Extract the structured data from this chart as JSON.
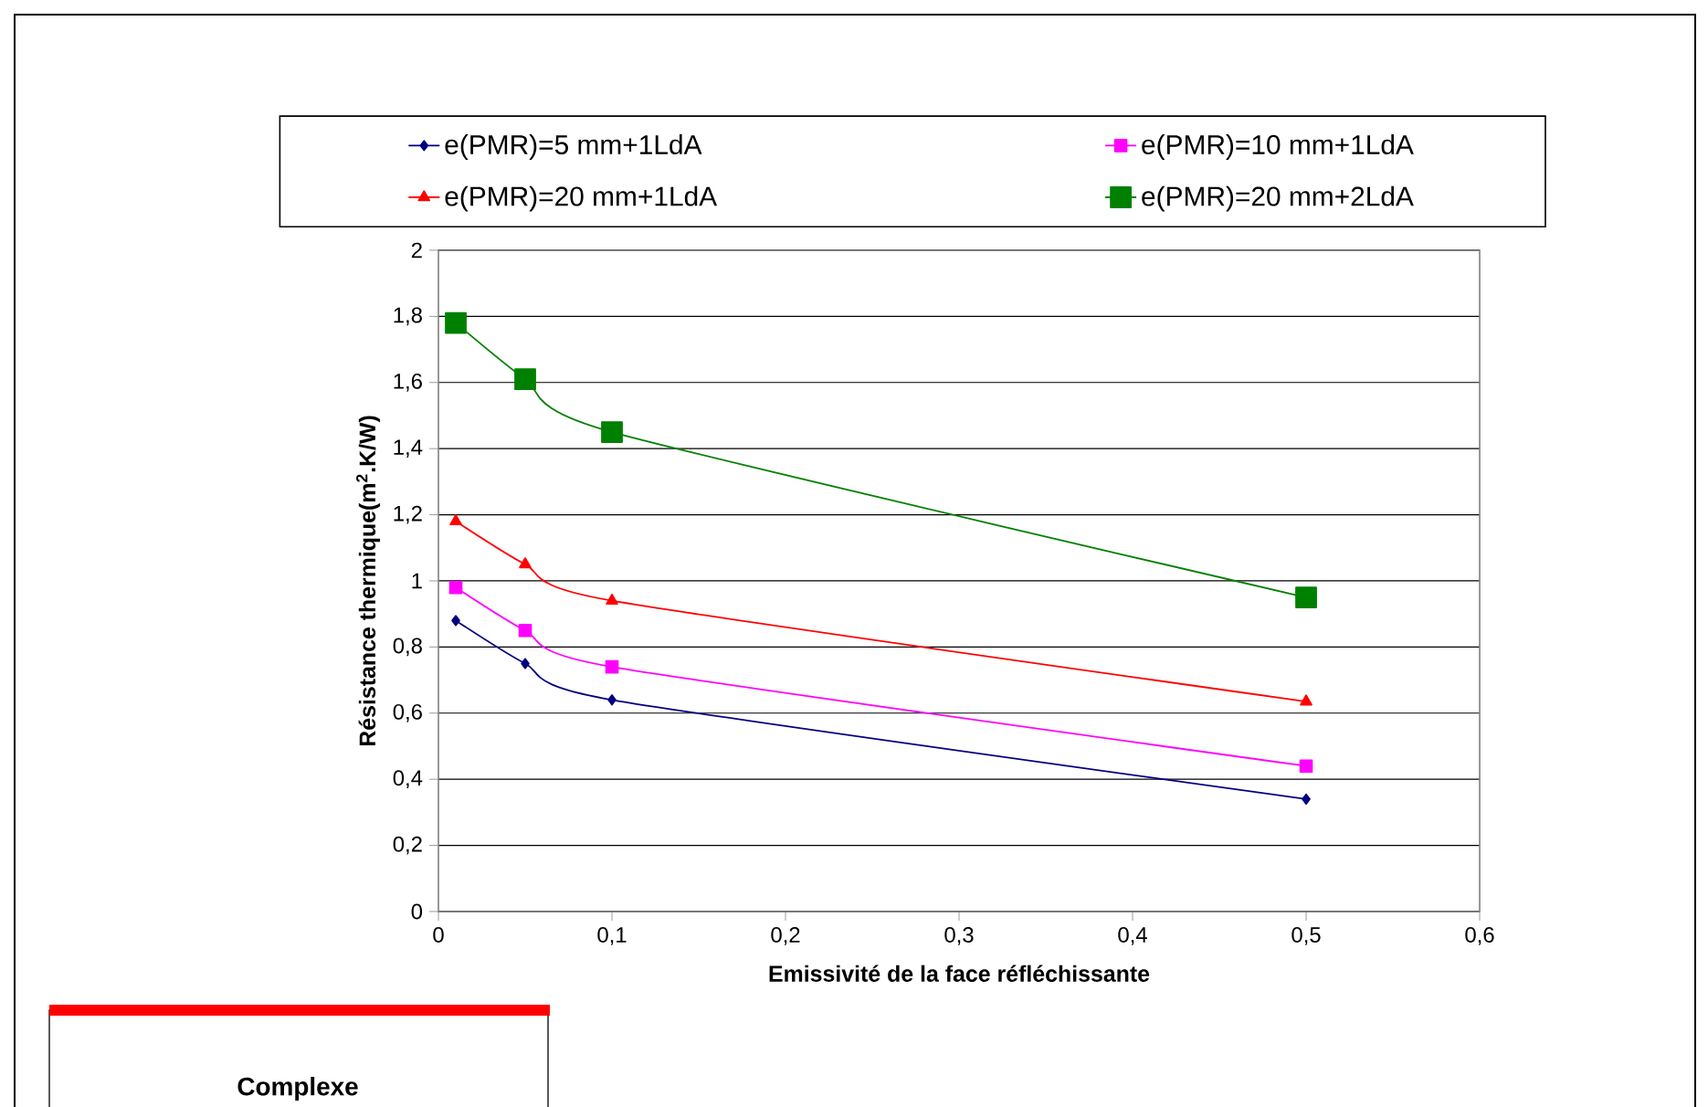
{
  "chart_data": {
    "type": "line",
    "xlabel": "Emissivité de la face réfléchissante",
    "ylabel": "Résistance thermique(m$^{2}$.K/W)",
    "x": [
      0.01,
      0.05,
      0.1,
      0.5
    ],
    "series": [
      {
        "name": "e(PMR)=5 mm+1LdA",
        "color": "#000080",
        "marker": "diamond",
        "values": [
          0.88,
          0.75,
          0.64,
          0.34
        ]
      },
      {
        "name": "e(PMR)=10 mm+1LdA",
        "color": "#ff00ff",
        "marker": "square",
        "values": [
          0.98,
          0.85,
          0.74,
          0.44
        ]
      },
      {
        "name": "e(PMR)=20 mm+1LdA",
        "color": "#ff0000",
        "marker": "triangle",
        "values": [
          1.18,
          1.05,
          0.94,
          0.635
        ]
      },
      {
        "name": "e(PMR)=20 mm+2LdA",
        "color": "#008000",
        "marker": "square",
        "values": [
          1.78,
          1.61,
          1.45,
          0.95
        ]
      }
    ],
    "xlim": [
      0,
      0.6
    ],
    "xticks": [
      0,
      {
        "value": 0.1,
        "label": "0,1"
      },
      {
        "value": 0.2,
        "label": "0,2"
      },
      {
        "value": 0.3,
        "label": "0,3"
      },
      {
        "value": 0.4,
        "label": "0,4"
      },
      {
        "value": 0.5,
        "label": "0,5"
      },
      {
        "value": 0.6,
        "label": "0,6"
      }
    ],
    "ylim": [
      0,
      2
    ],
    "yticks": [
      0,
      {
        "value": 0.2,
        "label": "0,2"
      },
      {
        "value": 0.4,
        "label": "0,4"
      },
      {
        "value": 0.6,
        "label": "0,6"
      },
      {
        "value": 0.8,
        "label": "0,8"
      },
      1,
      {
        "value": 1.2,
        "label": "1,2"
      },
      {
        "value": 1.4,
        "label": "1,4"
      },
      {
        "value": 1.6,
        "label": "1,6"
      },
      {
        "value": 1.8,
        "label": "1,8"
      },
      2
    ],
    "grid": "y",
    "legend": "top",
    "line_style": "solid",
    "annotations": [
      "Complexe"
    ]
  }
}
